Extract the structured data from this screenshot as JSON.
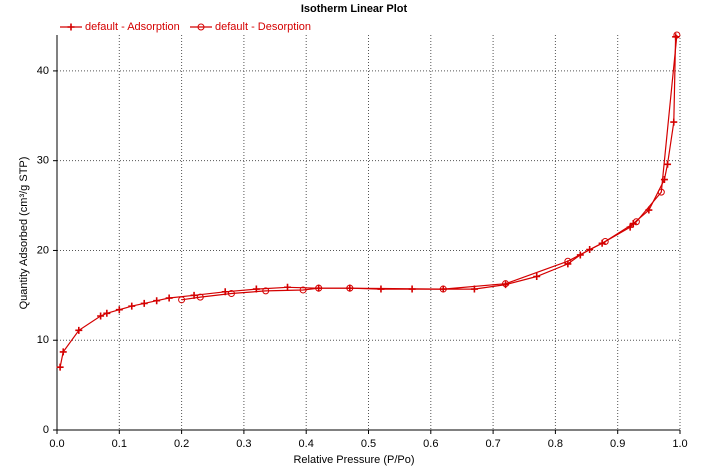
{
  "chart_data": {
    "type": "line",
    "title": "Isotherm Linear Plot",
    "x_label": "Relative Pressure (P/Po)",
    "y_label": "Quantity Adsorbed (cm³/g STP)",
    "xlim": [
      0,
      1
    ],
    "ylim": [
      0,
      44
    ],
    "xticks": [
      {
        "value": 0,
        "label": "0.0"
      },
      0.1,
      0.2,
      0.3,
      0.4,
      0.5,
      0.6,
      0.7,
      0.8,
      0.9,
      {
        "value": 1,
        "label": "1.0"
      }
    ],
    "yticks": [
      0,
      10,
      20,
      30,
      40
    ],
    "grid": true,
    "legend": "top-left",
    "series": [
      {
        "name": "default - Adsorption",
        "color": "#d40000",
        "marker": "plus",
        "x": [
          0.005,
          0.01,
          0.035,
          0.07,
          0.08,
          0.1,
          0.12,
          0.14,
          0.16,
          0.18,
          0.22,
          0.27,
          0.32,
          0.37,
          0.42,
          0.47,
          0.52,
          0.57,
          0.62,
          0.67,
          0.72,
          0.77,
          0.82,
          0.84,
          0.855,
          0.875,
          0.92,
          0.925,
          0.95,
          0.975,
          0.98,
          0.99,
          0.993
        ],
        "values": [
          7.0,
          8.7,
          11.1,
          12.7,
          13.0,
          13.4,
          13.8,
          14.1,
          14.4,
          14.7,
          15.0,
          15.4,
          15.7,
          15.9,
          15.8,
          15.8,
          15.7,
          15.7,
          15.7,
          15.7,
          16.2,
          17.1,
          18.5,
          19.5,
          20.1,
          20.8,
          22.6,
          23.0,
          24.5,
          27.9,
          29.6,
          34.3,
          43.8
        ]
      },
      {
        "name": "default - Desorption",
        "color": "#d40000",
        "marker": "circle",
        "x": [
          0.995,
          0.97,
          0.93,
          0.88,
          0.82,
          0.72,
          0.62,
          0.47,
          0.42,
          0.395,
          0.335,
          0.28,
          0.23,
          0.2
        ],
        "values": [
          44.0,
          26.5,
          23.2,
          21.0,
          18.8,
          16.3,
          15.7,
          15.8,
          15.8,
          15.6,
          15.5,
          15.2,
          14.8,
          14.5
        ]
      }
    ]
  }
}
